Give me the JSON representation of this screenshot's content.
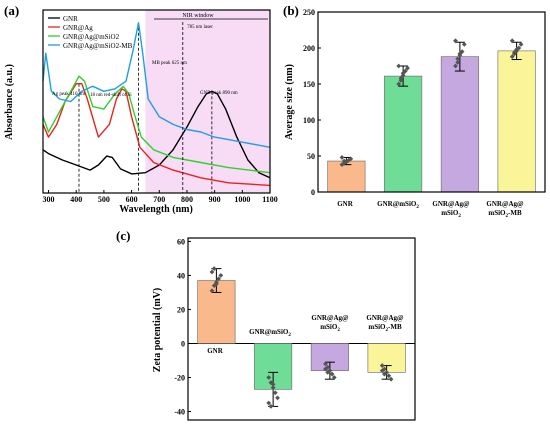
{
  "colors": {
    "gnr": "#000000",
    "gnr_ag": "#e8221f",
    "gnr_ag_msio2": "#2fd02f",
    "gnr_ag_msio2_mb": "#1f9fe0",
    "nir_band": "#f8dcf6",
    "bar_gnr": "#f9b98a",
    "bar_msio2": "#6fdc97",
    "bar_ag_msio2": "#c4a8df",
    "bar_mb": "#fbf59a"
  },
  "chart_data": [
    {
      "type": "line",
      "panel_label": "(a)",
      "xlabel": "Wavelength (nm)",
      "ylabel": "Absorbance (a.u.)",
      "xlim": [
        280,
        1100
      ],
      "ylim": [
        0,
        0.72
      ],
      "xticks": [
        "300",
        "400",
        "500",
        "600",
        "700",
        "800",
        "900",
        "1000",
        "1100"
      ],
      "xtick_values": [
        300,
        400,
        500,
        600,
        700,
        800,
        900,
        1000,
        1100
      ],
      "legend": [
        "GNR",
        "GNR@Ag",
        "GNR@Ag@mSiO2",
        "GNR@Ag@mSiO2-MB"
      ],
      "legend_placement": "top-left",
      "nir_window": {
        "label": "NIR window",
        "x": [
          650,
          1100
        ]
      },
      "laser_line": {
        "label": "785 nm laser",
        "x": 785
      },
      "annotations": {
        "ag_peak": "Ag peak 410 nm",
        "red_shift": "18 nm red-shift of Si",
        "mb_peak": "MB peak 625 nm",
        "gnr_peak": "GNR peak 890 nm"
      },
      "series": [
        {
          "name": "GNR",
          "color_key": "gnr",
          "x": [
            280,
            300,
            350,
            400,
            450,
            480,
            510,
            530,
            560,
            600,
            650,
            700,
            750,
            800,
            840,
            870,
            890,
            910,
            940,
            980,
            1020,
            1060,
            1100
          ],
          "y": [
            0.17,
            0.155,
            0.13,
            0.11,
            0.09,
            0.11,
            0.145,
            0.14,
            0.095,
            0.075,
            0.08,
            0.11,
            0.17,
            0.26,
            0.34,
            0.39,
            0.4,
            0.39,
            0.33,
            0.22,
            0.13,
            0.08,
            0.06
          ]
        },
        {
          "name": "GNR@Ag",
          "color_key": "gnr_ag",
          "x": [
            280,
            300,
            330,
            360,
            400,
            420,
            440,
            480,
            520,
            545,
            565,
            580,
            600,
            630,
            680,
            750,
            850,
            950,
            1100
          ],
          "y": [
            0.27,
            0.22,
            0.27,
            0.36,
            0.43,
            0.43,
            0.37,
            0.22,
            0.27,
            0.37,
            0.41,
            0.4,
            0.3,
            0.18,
            0.12,
            0.09,
            0.06,
            0.04,
            0.03
          ]
        },
        {
          "name": "GNR@Ag@mSiO2",
          "color_key": "gnr_ag_msio2",
          "x": [
            280,
            300,
            330,
            360,
            390,
            410,
            430,
            460,
            500,
            540,
            570,
            590,
            610,
            635,
            680,
            750,
            850,
            950,
            1100
          ],
          "y": [
            0.3,
            0.24,
            0.3,
            0.36,
            0.42,
            0.46,
            0.44,
            0.34,
            0.33,
            0.39,
            0.42,
            0.39,
            0.31,
            0.22,
            0.17,
            0.14,
            0.12,
            0.1,
            0.08
          ]
        },
        {
          "name": "GNR@Ag@mSiO2-MB",
          "color_key": "gnr_ag_msio2_mb",
          "x": [
            280,
            290,
            310,
            340,
            380,
            420,
            460,
            500,
            540,
            580,
            605,
            625,
            640,
            660,
            700,
            750,
            800,
            850,
            900,
            950,
            1000,
            1050,
            1100
          ],
          "y": [
            0.44,
            0.55,
            0.4,
            0.37,
            0.36,
            0.4,
            0.42,
            0.4,
            0.41,
            0.44,
            0.56,
            0.67,
            0.55,
            0.37,
            0.3,
            0.27,
            0.25,
            0.24,
            0.22,
            0.21,
            0.2,
            0.19,
            0.18
          ]
        }
      ]
    },
    {
      "type": "bar",
      "panel_label": "(b)",
      "ylabel": "Average size (nm)",
      "ylim": [
        0,
        250
      ],
      "yticks": [
        "0",
        "50",
        "100",
        "150",
        "200",
        "250"
      ],
      "ytick_values": [
        0,
        50,
        100,
        150,
        200,
        250
      ],
      "categories": [
        "GNR",
        "GNR@mSiO2",
        "GNR@Ag@mSiO2",
        "GNR@Ag@mSiO2-MB"
      ],
      "values": [
        43,
        161,
        188,
        196
      ],
      "errors": [
        5,
        14,
        20,
        12
      ],
      "points": [
        [
          38,
          40,
          42,
          44,
          46,
          48,
          43
        ],
        [
          150,
          155,
          162,
          168,
          172,
          175,
          158,
          165
        ],
        [
          175,
          180,
          190,
          195,
          205,
          210,
          185,
          192
        ],
        [
          188,
          192,
          196,
          200,
          205,
          210,
          194,
          198
        ]
      ]
    },
    {
      "type": "bar",
      "panel_label": "(c)",
      "ylabel": "Zeta potential (mV)",
      "ylim": [
        -45,
        62
      ],
      "yticks": [
        "-40",
        "-20",
        "0",
        "20",
        "40",
        "60"
      ],
      "ytick_values": [
        -40,
        -20,
        0,
        20,
        40,
        60
      ],
      "categories": [
        "GNR",
        "GNR@mSiO2",
        "GNR@Ag@mSiO2",
        "GNR@Ag@mSiO2-MB"
      ],
      "values": [
        37,
        -27,
        -16,
        -17
      ],
      "errors": [
        7,
        10,
        5,
        4
      ],
      "points": [
        [
          31,
          34,
          36,
          38,
          40,
          42,
          44,
          35
        ],
        [
          -20,
          -23,
          -26,
          -29,
          -32,
          -35,
          -37,
          -24
        ],
        [
          -12,
          -14,
          -16,
          -18,
          -20,
          -15,
          -17
        ],
        [
          -13,
          -15,
          -17,
          -19,
          -21,
          -16,
          -18
        ]
      ]
    }
  ]
}
